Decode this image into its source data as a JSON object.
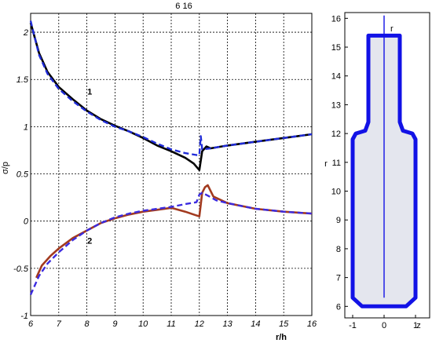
{
  "chart_data": [
    {
      "type": "line",
      "title": "6  16",
      "xlabel": "r/h",
      "ylabel": "σ/p",
      "xlim": [
        6,
        16
      ],
      "ylim": [
        -1,
        2.2
      ],
      "xticks": [
        6,
        7,
        8,
        9,
        10,
        11,
        12,
        13,
        14,
        15,
        16
      ],
      "yticks": [
        -1,
        -0.5,
        0,
        0.5,
        1,
        1.5,
        2
      ],
      "xtick_labels": [
        "6",
        "7",
        "8",
        "9",
        "10",
        "11",
        "12",
        "13",
        "14",
        "15",
        "16"
      ],
      "ytick_labels": [
        "-1",
        "-0.5",
        "0",
        "0.5",
        "1",
        "1.5",
        "2"
      ],
      "grid": true,
      "annotations": [
        {
          "text": "1",
          "x": 8.1,
          "y": 1.34
        },
        {
          "text": "2",
          "x": 8.1,
          "y": -0.24
        }
      ],
      "series": [
        {
          "color": "#000000",
          "style": "solid",
          "x": [
            6,
            6.3,
            6.6,
            7,
            7.5,
            8,
            8.5,
            9,
            9.5,
            10,
            10.5,
            11,
            11.5,
            11.8,
            12,
            12.1,
            12.25,
            12.4,
            13,
            14,
            15,
            16
          ],
          "y": [
            2.1,
            1.78,
            1.58,
            1.42,
            1.29,
            1.17,
            1.08,
            1.01,
            0.95,
            0.88,
            0.8,
            0.74,
            0.67,
            0.61,
            0.54,
            0.74,
            0.79,
            0.77,
            0.8,
            0.84,
            0.88,
            0.92
          ]
        },
        {
          "color": "#1f2bd8",
          "style": "dashed",
          "x": [
            6,
            6.3,
            6.6,
            7,
            7.5,
            8,
            8.5,
            9,
            9.5,
            10,
            10.5,
            11,
            11.5,
            11.9,
            12,
            12.05,
            12.1,
            12.4,
            13,
            14,
            15,
            16
          ],
          "y": [
            2.12,
            1.76,
            1.56,
            1.4,
            1.27,
            1.16,
            1.07,
            1.0,
            0.95,
            0.89,
            0.82,
            0.76,
            0.72,
            0.7,
            0.7,
            0.9,
            0.76,
            0.77,
            0.8,
            0.84,
            0.88,
            0.92
          ]
        },
        {
          "color": "#a23a1f",
          "style": "solid",
          "x": [
            6.2,
            6.4,
            6.7,
            7,
            7.5,
            8,
            8.5,
            9,
            9.5,
            10,
            10.5,
            11,
            11.5,
            11.8,
            12,
            12.1,
            12.2,
            12.3,
            12.5,
            13,
            14,
            15,
            16
          ],
          "y": [
            -0.6,
            -0.47,
            -0.37,
            -0.29,
            -0.18,
            -0.1,
            -0.02,
            0.03,
            0.07,
            0.1,
            0.12,
            0.14,
            0.1,
            0.07,
            0.05,
            0.3,
            0.36,
            0.38,
            0.26,
            0.19,
            0.13,
            0.1,
            0.08
          ]
        },
        {
          "color": "#3b2be0",
          "style": "dashed",
          "x": [
            6,
            6.3,
            6.6,
            7,
            7.5,
            8,
            8.5,
            9,
            9.5,
            10,
            10.5,
            11,
            11.5,
            11.9,
            12,
            12.1,
            12.3,
            12.6,
            13,
            14,
            15,
            16
          ],
          "y": [
            -0.78,
            -0.58,
            -0.45,
            -0.33,
            -0.2,
            -0.1,
            -0.02,
            0.04,
            0.08,
            0.11,
            0.13,
            0.15,
            0.18,
            0.2,
            0.28,
            0.3,
            0.27,
            0.22,
            0.19,
            0.13,
            0.1,
            0.08
          ]
        }
      ]
    },
    {
      "type": "line",
      "title": "",
      "xlabel": "",
      "ylabel": "r",
      "xlim": [
        -1.25,
        1.45
      ],
      "ylim": [
        5.6,
        16.2
      ],
      "xtick_labels": [
        "-1",
        "0",
        "1",
        "z"
      ],
      "ytick_labels": [
        "6",
        "7",
        "8",
        "9",
        "10",
        "11",
        "12",
        "13",
        "14",
        "15",
        "16"
      ],
      "axis_tag": "r",
      "grid": false,
      "fill_color": "#e4e6ee",
      "outline_color": "#1212e6",
      "series": [
        {
          "color": "#1212e6",
          "x": [
            -0.5,
            -0.5,
            -0.6,
            -0.9,
            -1,
            -1,
            -0.7,
            0.7,
            1,
            1,
            0.9,
            0.6,
            0.5,
            0.5,
            -0.5
          ],
          "y": [
            15.4,
            12.4,
            12.1,
            12,
            11.8,
            6.3,
            6,
            6,
            6.3,
            11.8,
            12,
            12.1,
            12.4,
            15.4,
            15.4
          ]
        },
        {
          "color": "#1212e6",
          "x": [
            0,
            0
          ],
          "y": [
            16.1,
            6.3
          ]
        }
      ]
    }
  ]
}
